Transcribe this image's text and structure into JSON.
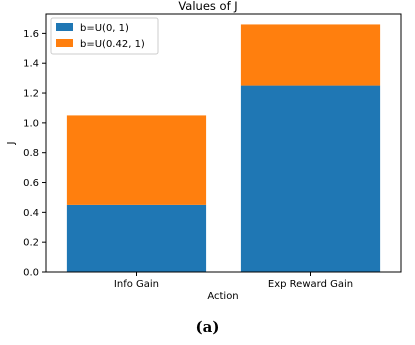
{
  "chart_data": {
    "type": "bar",
    "stacked": true,
    "title": "Values of J",
    "xlabel": "Action",
    "ylabel": "J",
    "categories": [
      "Info Gain",
      "Exp Reward Gain"
    ],
    "series": [
      {
        "name": "b=U(0, 1)",
        "values": [
          0.45,
          1.25
        ],
        "color": "#1f77b4"
      },
      {
        "name": "b=U(0.42, 1)",
        "values": [
          0.6,
          0.41
        ],
        "color": "#ff7f0e"
      }
    ],
    "ylim": [
      0,
      1.73
    ],
    "yticks": [
      "0.0",
      "0.2",
      "0.4",
      "0.6",
      "0.8",
      "1.0",
      "1.2",
      "1.4",
      "1.6"
    ],
    "grid": false,
    "legend_position": "top-left"
  },
  "caption": "(a)"
}
